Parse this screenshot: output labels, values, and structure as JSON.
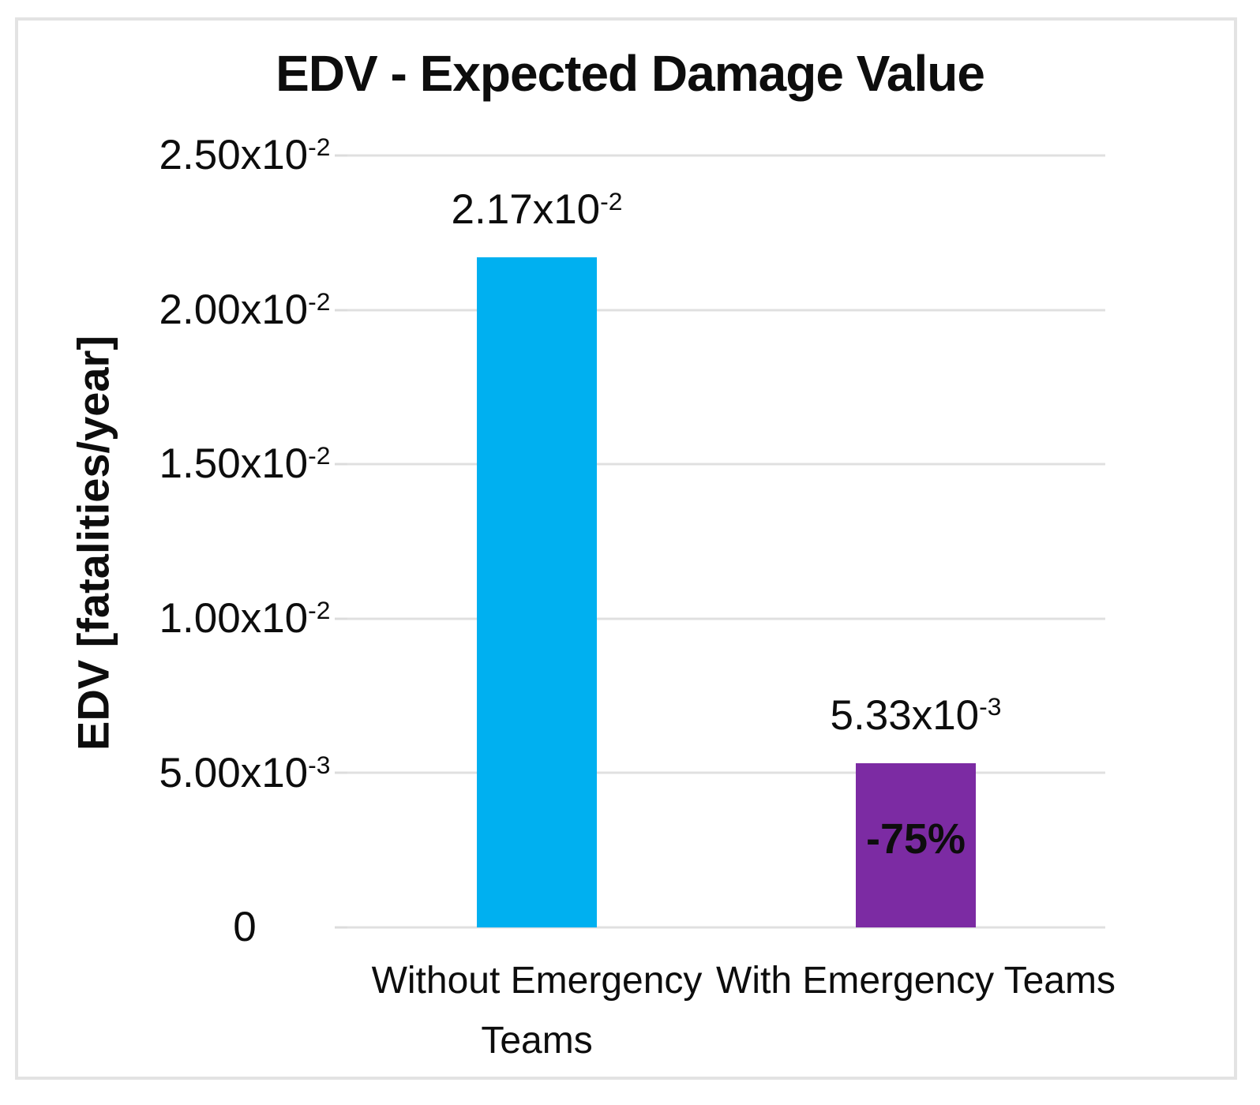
{
  "chart_data": {
    "type": "bar",
    "title": "EDV - Expected Damage Value",
    "xlabel": "",
    "ylabel": "EDV [fatalities/year]",
    "ylim": [
      0,
      0.025
    ],
    "grid": true,
    "legend": "none",
    "categories": [
      "Without Emergency Teams",
      "With Emergency Teams"
    ],
    "values": [
      0.0217,
      0.00533
    ],
    "y_ticks": [
      {
        "base": "2.50x10",
        "exp": "-2",
        "value": 0.025
      },
      {
        "base": "2.00x10",
        "exp": "-2",
        "value": 0.02
      },
      {
        "base": "1.50x10",
        "exp": "-2",
        "value": 0.015
      },
      {
        "base": "1.00x10",
        "exp": "-2",
        "value": 0.01
      },
      {
        "base": "5.00x10",
        "exp": "-3",
        "value": 0.005
      },
      {
        "base": "0",
        "exp": "",
        "value": 0
      }
    ],
    "bars": [
      {
        "category": "Without Emergency Teams",
        "value": 0.0217,
        "label_base": "2.17x10",
        "label_exp": "-2",
        "annotation": "",
        "color": "#00B0F0"
      },
      {
        "category": "With Emergency Teams",
        "value": 0.00533,
        "label_base": "5.33x10",
        "label_exp": "-3",
        "annotation": "-75%",
        "color": "#7C2BA3"
      }
    ],
    "colors": {
      "bar_without_teams": "#00B0F0",
      "bar_with_teams": "#7C2BA3",
      "gridline": "#E0E0E0",
      "frame_border": "#E3E3E3",
      "text": "#0D0D0D"
    }
  }
}
